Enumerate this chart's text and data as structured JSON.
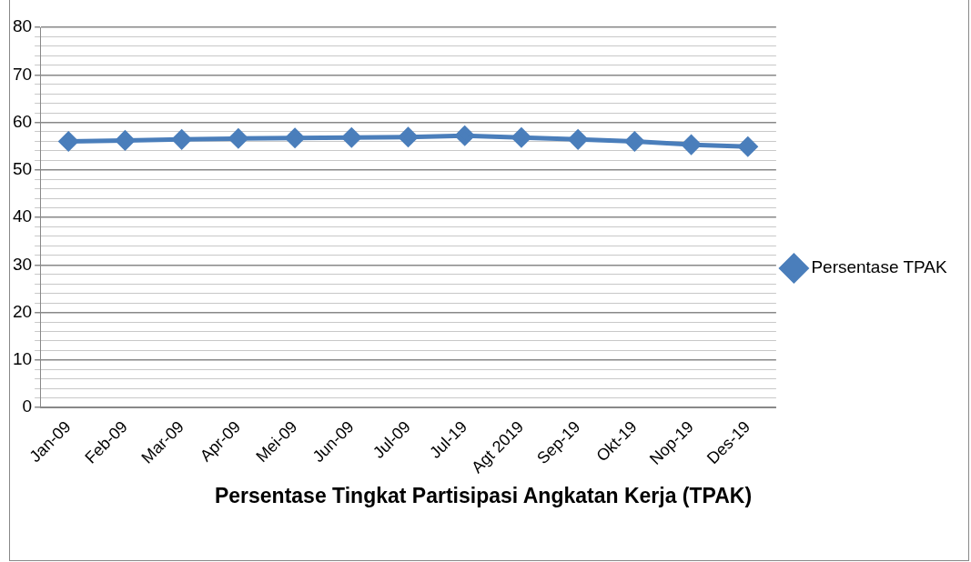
{
  "chart_data": {
    "type": "line",
    "title": "Persentase Tingkat Partisipasi Angkatan Kerja (TPAK)",
    "categories": [
      "Jan-09",
      "Feb-09",
      "Mar-09",
      "Apr-09",
      "Mei-09",
      "Jun-09",
      "Jul-09",
      "Jul-19",
      "Agt 2019",
      "Sep-19",
      "Okt-19",
      "Nop-19",
      "Des-19"
    ],
    "series": [
      {
        "name": "Persentase TPAK",
        "color": "#4a7ebb",
        "values": [
          56.0,
          56.2,
          56.4,
          56.6,
          56.7,
          56.8,
          56.9,
          57.2,
          56.8,
          56.4,
          56.0,
          55.3,
          54.9
        ]
      }
    ],
    "ylim": [
      0,
      80
    ],
    "yticks": [
      0,
      {
        "value": 2,
        "label": null
      },
      {
        "value": 4,
        "label": null
      },
      {
        "value": 6,
        "label": null
      },
      {
        "value": 8,
        "label": null
      },
      10,
      {
        "value": 12,
        "label": null
      },
      {
        "value": 14,
        "label": null
      },
      {
        "value": 16,
        "label": null
      },
      {
        "value": 18,
        "label": null
      },
      20,
      {
        "value": 22,
        "label": null
      },
      {
        "value": 24,
        "label": null
      },
      {
        "value": 26,
        "label": null
      },
      {
        "value": 28,
        "label": null
      },
      30,
      {
        "value": 32,
        "label": null
      },
      {
        "value": 34,
        "label": null
      },
      {
        "value": 36,
        "label": null
      },
      {
        "value": 38,
        "label": null
      },
      40,
      {
        "value": 42,
        "label": null
      },
      {
        "value": 44,
        "label": null
      },
      {
        "value": 46,
        "label": null
      },
      {
        "value": 48,
        "label": null
      },
      50,
      {
        "value": 52,
        "label": null
      },
      {
        "value": 54,
        "label": null
      },
      {
        "value": 56,
        "label": null
      },
      {
        "value": 58,
        "label": null
      },
      60,
      {
        "value": 62,
        "label": null
      },
      {
        "value": 64,
        "label": null
      },
      {
        "value": 66,
        "label": null
      },
      {
        "value": 68,
        "label": null
      },
      70,
      {
        "value": 72,
        "label": null
      },
      {
        "value": 74,
        "label": null
      },
      {
        "value": 76,
        "label": null
      },
      {
        "value": 78,
        "label": null
      },
      80
    ],
    "grid": "y",
    "legend": "right",
    "marker": "diamond",
    "line_style": "solid"
  }
}
